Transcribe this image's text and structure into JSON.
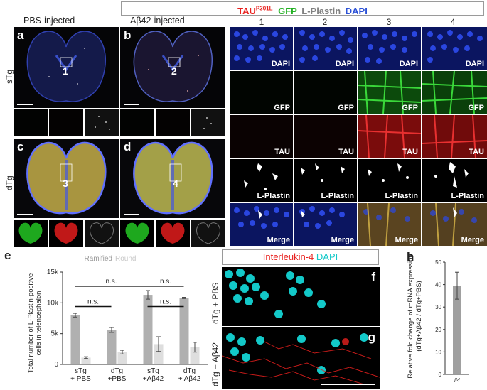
{
  "header": {
    "tau": "TAU",
    "tau_sup": "P301L",
    "gfp": "GFP",
    "lplastin": "L-Plastin",
    "dapi": "DAPI",
    "colors": {
      "tau": "#e8201e",
      "gfp": "#22b022",
      "lplastin": "#808080",
      "dapi": "#2d52d6"
    }
  },
  "columns": {
    "pbs": "PBS-injected",
    "abeta": "Aβ42-injected"
  },
  "rows": {
    "stg": "sTg",
    "dtg": "dTg"
  },
  "panel_letters": {
    "a": "a",
    "b": "b",
    "c": "c",
    "d": "d",
    "e": "e",
    "f": "f",
    "g": "g",
    "h": "h"
  },
  "inset_numbers": [
    "1",
    "2",
    "3",
    "4"
  ],
  "grid": {
    "columns": [
      "1",
      "2",
      "3",
      "4"
    ],
    "rows": [
      {
        "label": "DAPI",
        "labels": [
          "DAPI",
          "DAPI",
          "DAPI",
          "DAPI"
        ]
      },
      {
        "label": "GFP",
        "labels": [
          "GFP",
          "GFP",
          "GFP",
          "GFP"
        ]
      },
      {
        "label": "TAU",
        "labels": [
          "TAU",
          "TAU",
          "TAU",
          "TAU"
        ]
      },
      {
        "label": "L-Plastin",
        "labels": [
          "L-Plastin",
          "L-Plastin",
          "L-Plastin",
          "L-Plastin"
        ]
      },
      {
        "label": "Merge",
        "labels": [
          "Merge",
          "Merge",
          "Merge",
          "Merge"
        ]
      }
    ]
  },
  "panel_e": {
    "legend_ramified": "Ramified",
    "legend_round": "Round",
    "ns": "n.s.",
    "ylabel_line1": "Total number of L-Plastin-positive",
    "ylabel_line2": "cells in telencephalon"
  },
  "panel_fg": {
    "title_il4": "Interleukin-4",
    "title_dapi": "DAPI",
    "f_label": "dTg + PBS",
    "g_label": "dTg + Aβ42",
    "colors": {
      "il4": "#e8201e",
      "dapi": "#13c9c9"
    }
  },
  "panel_h": {
    "ylabel_line1": "Relative fold change of mRNA expression",
    "ylabel_line2": "(dTg+Aβ42 / dTg+PBS)"
  },
  "chart_data": [
    {
      "type": "bar",
      "panel": "e",
      "categories": [
        "sTg\n+ PBS",
        "dTg\n+PBS",
        "sTg\n+Aβ42",
        "dTg\n+ Aβ42"
      ],
      "series": [
        {
          "name": "Ramified",
          "values": [
            8000,
            5600,
            11300,
            10800
          ],
          "errors": [
            300,
            400,
            700,
            100
          ],
          "color": "#b0b0b0"
        },
        {
          "name": "Round",
          "values": [
            1100,
            2000,
            3300,
            2800
          ],
          "errors": [
            150,
            300,
            1200,
            800
          ],
          "color": "#dedede"
        }
      ],
      "ylim": [
        0,
        15000
      ],
      "yticks": [
        0,
        5000,
        10000,
        15000
      ],
      "ytick_labels": [
        "0",
        "5k",
        "10k",
        "15k"
      ],
      "annotations": [
        "n.s.",
        "n.s.",
        "n.s.",
        "n.s."
      ]
    },
    {
      "type": "bar",
      "panel": "h",
      "categories": [
        "il4"
      ],
      "values": [
        39.5
      ],
      "errors": [
        6
      ],
      "ylim": [
        0,
        50
      ],
      "yticks": [
        0,
        10,
        20,
        30,
        40,
        50
      ],
      "color": "#a0a0a0"
    }
  ]
}
